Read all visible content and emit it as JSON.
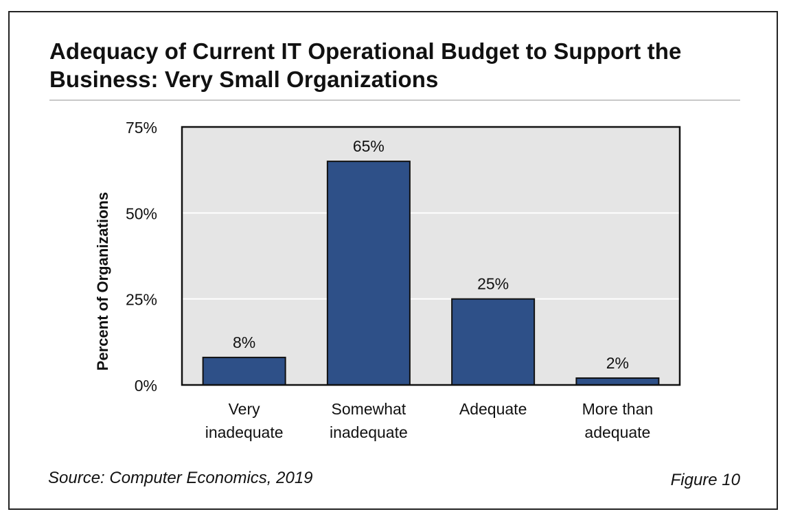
{
  "chart_data": {
    "type": "bar",
    "title": "Adequacy of Current IT Operational Budget to Support the Business: Very Small Organizations",
    "title_lines": [
      "Adequacy of Current IT Operational Budget to Support the",
      "Business: Very Small Organizations"
    ],
    "categories": [
      [
        "Very",
        "inadequate"
      ],
      [
        "Somewhat",
        "inadequate"
      ],
      [
        "Adequate"
      ],
      [
        "More than",
        "adequate"
      ]
    ],
    "values": [
      8,
      65,
      25,
      2
    ],
    "value_labels": [
      "8%",
      "65%",
      "25%",
      "2%"
    ],
    "ylabel": "Percent of Organizations",
    "xlabel": "",
    "ylim": [
      0,
      75
    ],
    "yticks": [
      0,
      25,
      50,
      75
    ],
    "ytick_labels": [
      "0%",
      "25%",
      "50%",
      "75%"
    ],
    "grid": true,
    "colors": {
      "bar": "#2e5088",
      "plot_bg": "#e5e5e5",
      "grid": "#ffffff",
      "axis": "#111111"
    }
  },
  "footer": {
    "source": "Source: Computer Economics, 2019",
    "figure": "Figure 10"
  }
}
